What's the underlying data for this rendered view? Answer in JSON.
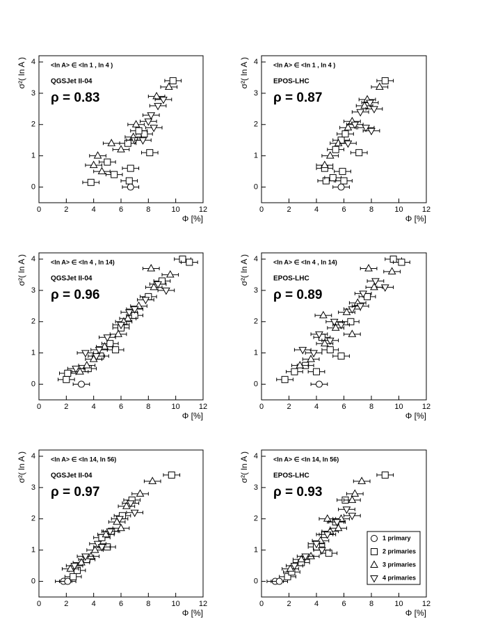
{
  "chart_data": [
    {
      "type": "scatter",
      "range": "<ln A> ∈ <ln 1 , ln 4 )",
      "model": "QGSJet II-04",
      "rho": "ρ = 0.83",
      "xlabel": "Φ [%]",
      "ylabel": "σ²( ln A )",
      "xlim": [
        0,
        12
      ],
      "ylim": [
        -0.5,
        4.2
      ],
      "xticks": [
        0,
        2,
        4,
        6,
        8,
        10,
        12
      ],
      "yticks": [
        0,
        1,
        2,
        3,
        4
      ],
      "series": [
        {
          "marker": "circle",
          "color": "#000000",
          "xerr": 0.6,
          "x": [
            6.7
          ],
          "values": [
            0.0
          ]
        },
        {
          "marker": "square",
          "color": "#000000",
          "xerr": 0.6,
          "x": [
            3.8,
            6.6,
            5.5,
            6.7,
            8.1,
            5.0,
            6.5,
            7.7,
            9.8,
            7.3
          ],
          "values": [
            0.15,
            0.2,
            0.4,
            0.6,
            1.1,
            0.8,
            1.4,
            1.7,
            3.4,
            1.8
          ]
        },
        {
          "marker": "triangle-up",
          "color": "#000000",
          "xerr": 0.6,
          "x": [
            4.6,
            4.3,
            5.3,
            6.0,
            7.1,
            8.6,
            9.5,
            4.0,
            6.9
          ],
          "values": [
            0.5,
            1.0,
            1.4,
            1.2,
            2.0,
            2.9,
            3.2,
            0.7,
            1.6
          ]
        },
        {
          "marker": "triangle-down",
          "color": "#000000",
          "xerr": 0.6,
          "x": [
            7.0,
            8.0,
            8.4,
            8.7,
            9.1,
            7.6,
            8.2
          ],
          "values": [
            1.5,
            2.1,
            1.9,
            2.6,
            2.8,
            1.5,
            2.3
          ]
        }
      ]
    },
    {
      "type": "scatter",
      "range": "<ln A> ∈ <ln 1 , ln 4 )",
      "model": "EPOS-LHC",
      "rho": "ρ = 0.87",
      "xlabel": "Φ [%]",
      "ylabel": "σ²( ln A )",
      "xlim": [
        0,
        12
      ],
      "ylim": [
        -0.5,
        4.2
      ],
      "xticks": [
        0,
        2,
        4,
        6,
        8,
        10,
        12
      ],
      "yticks": [
        0,
        1,
        2,
        3,
        4
      ],
      "series": [
        {
          "marker": "circle",
          "color": "#000000",
          "xerr": 0.6,
          "x": [
            5.8
          ],
          "values": [
            0.0
          ]
        },
        {
          "marker": "square",
          "color": "#000000",
          "xerr": 0.6,
          "x": [
            4.7,
            5.2,
            5.9,
            4.6,
            6.0,
            7.1,
            5.8,
            6.1,
            9.0,
            5.4
          ],
          "values": [
            0.2,
            0.3,
            0.5,
            0.6,
            0.2,
            1.1,
            1.5,
            1.7,
            3.4,
            1.2
          ]
        },
        {
          "marker": "triangle-up",
          "color": "#000000",
          "xerr": 0.6,
          "x": [
            4.6,
            5.0,
            5.6,
            6.3,
            7.5,
            7.7,
            8.6,
            6.6
          ],
          "values": [
            0.7,
            1.0,
            1.4,
            1.9,
            2.6,
            2.8,
            3.2,
            2.1
          ]
        },
        {
          "marker": "triangle-down",
          "color": "#000000",
          "xerr": 0.6,
          "x": [
            6.3,
            6.8,
            7.6,
            7.2,
            8.2,
            7.9,
            8.0
          ],
          "values": [
            1.4,
            2.0,
            1.9,
            2.4,
            2.5,
            2.7,
            1.8
          ]
        }
      ]
    },
    {
      "type": "scatter",
      "range": "<ln A> ∈ <ln 4 , ln 14)",
      "model": "QGSJet II-04",
      "rho": "ρ = 0.96",
      "xlabel": "Φ [%]",
      "ylabel": "σ²( ln A )",
      "xlim": [
        0,
        12
      ],
      "ylim": [
        -0.5,
        4.2
      ],
      "xticks": [
        0,
        2,
        4,
        6,
        8,
        10,
        12
      ],
      "yticks": [
        0,
        1,
        2,
        3,
        4
      ],
      "series": [
        {
          "marker": "circle",
          "color": "#000000",
          "xerr": 0.6,
          "x": [
            3.1
          ],
          "values": [
            0.0
          ]
        },
        {
          "marker": "square",
          "color": "#000000",
          "xerr": 0.6,
          "x": [
            2.0,
            2.1,
            3.6,
            4.5,
            5.2,
            6.0,
            7.0,
            8.0,
            10.5,
            11.0,
            9.0,
            5.6
          ],
          "values": [
            0.15,
            0.35,
            0.5,
            0.9,
            1.3,
            1.8,
            2.2,
            2.8,
            4.0,
            3.9,
            3.3,
            1.1
          ]
        },
        {
          "marker": "triangle-up",
          "color": "#000000",
          "xerr": 0.6,
          "x": [
            3.0,
            4.0,
            4.8,
            5.8,
            6.5,
            7.3,
            8.4,
            9.6,
            8.2,
            3.5,
            6.2
          ],
          "values": [
            0.4,
            0.8,
            1.2,
            1.6,
            2.1,
            2.5,
            3.1,
            3.5,
            3.7,
            0.6,
            2.0
          ]
        },
        {
          "marker": "triangle-down",
          "color": "#000000",
          "xerr": 0.6,
          "x": [
            2.7,
            3.4,
            4.4,
            5.0,
            6.0,
            7.0,
            7.8,
            8.7,
            9.3,
            6.6,
            4.2
          ],
          "values": [
            0.5,
            1.0,
            1.1,
            1.5,
            1.9,
            2.4,
            2.7,
            3.2,
            3.0,
            2.3,
            0.9
          ]
        }
      ]
    },
    {
      "type": "scatter",
      "range": "<ln A> ∈ <ln 4 , ln 14)",
      "model": "EPOS-LHC",
      "rho": "ρ = 0.89",
      "xlabel": "Φ [%]",
      "ylabel": "σ²( ln A )",
      "xlim": [
        0,
        12
      ],
      "ylim": [
        -0.5,
        4.2
      ],
      "xticks": [
        0,
        2,
        4,
        6,
        8,
        10,
        12
      ],
      "yticks": [
        0,
        1,
        2,
        3,
        4
      ],
      "series": [
        {
          "marker": "circle",
          "color": "#000000",
          "xerr": 0.6,
          "x": [
            4.2
          ],
          "values": [
            0.0
          ]
        },
        {
          "marker": "square",
          "color": "#000000",
          "xerr": 0.6,
          "x": [
            1.7,
            2.4,
            3.2,
            4.0,
            5.0,
            4.4,
            6.5,
            7.7,
            9.6,
            10.2,
            5.8
          ],
          "values": [
            0.15,
            0.4,
            0.6,
            0.4,
            1.1,
            1.5,
            2.0,
            2.8,
            4.0,
            3.9,
            0.9
          ]
        },
        {
          "marker": "triangle-up",
          "color": "#000000",
          "xerr": 0.6,
          "x": [
            2.8,
            3.6,
            4.6,
            5.4,
            6.2,
            7.0,
            8.2,
            9.5,
            7.8,
            4.5,
            6.6
          ],
          "values": [
            0.6,
            0.8,
            1.3,
            1.8,
            2.3,
            2.6,
            3.1,
            3.6,
            3.7,
            2.2,
            1.6
          ]
        },
        {
          "marker": "triangle-down",
          "color": "#000000",
          "xerr": 0.6,
          "x": [
            3.0,
            3.8,
            5.0,
            5.8,
            6.6,
            7.4,
            8.3,
            9.0,
            5.3,
            4.2,
            7.2
          ],
          "values": [
            1.1,
            1.0,
            1.4,
            1.9,
            2.4,
            2.9,
            3.3,
            3.1,
            2.0,
            1.6,
            2.5
          ]
        }
      ]
    },
    {
      "type": "scatter",
      "range": "<ln A> ∈ <ln 14, ln 56)",
      "model": "QGSJet II-04",
      "rho": "ρ = 0.97",
      "xlabel": "Φ [%]",
      "ylabel": "σ²( ln A )",
      "xlim": [
        0,
        12
      ],
      "ylim": [
        -0.5,
        4.2
      ],
      "xticks": [
        0,
        2,
        4,
        6,
        8,
        10,
        12
      ],
      "yticks": [
        0,
        1,
        2,
        3,
        4
      ],
      "series": [
        {
          "marker": "circle",
          "color": "#000000",
          "xerr": 0.6,
          "x": [
            1.8,
            2.1
          ],
          "values": [
            0.0,
            0.0
          ]
        },
        {
          "marker": "square",
          "color": "#000000",
          "xerr": 0.6,
          "x": [
            2.5,
            2.8,
            3.5,
            4.6,
            5.3,
            6.1,
            6.8,
            9.7,
            5.0
          ],
          "values": [
            0.15,
            0.35,
            0.7,
            1.4,
            1.6,
            2.1,
            2.6,
            3.4,
            1.1
          ]
        },
        {
          "marker": "triangle-up",
          "color": "#000000",
          "xerr": 0.6,
          "x": [
            2.3,
            3.1,
            4.1,
            4.9,
            5.7,
            6.4,
            7.4,
            8.3,
            3.8,
            6.0
          ],
          "values": [
            0.4,
            0.6,
            1.0,
            1.5,
            1.9,
            2.4,
            2.8,
            3.2,
            0.8,
            1.7
          ]
        },
        {
          "marker": "triangle-down",
          "color": "#000000",
          "xerr": 0.6,
          "x": [
            2.6,
            3.4,
            4.3,
            5.2,
            5.9,
            6.7,
            7.0,
            4.6
          ],
          "values": [
            0.5,
            0.8,
            1.2,
            1.6,
            2.0,
            2.5,
            2.2,
            1.1
          ]
        }
      ]
    },
    {
      "type": "scatter",
      "range": "<ln A> ∈ <ln 14, ln 56)",
      "model": "EPOS-LHC",
      "rho": "ρ = 0.93",
      "xlabel": "Φ [%]",
      "ylabel": "σ²( ln A )",
      "xlim": [
        0,
        12
      ],
      "ylim": [
        -0.5,
        4.2
      ],
      "xticks": [
        0,
        2,
        4,
        6,
        8,
        10,
        12
      ],
      "yticks": [
        0,
        1,
        2,
        3,
        4
      ],
      "legend": "lower right",
      "series": [
        {
          "name": "1 primary",
          "marker": "circle",
          "color": "#000000",
          "xerr": 0.6,
          "x": [
            1.0,
            1.3
          ],
          "values": [
            0.0,
            0.0
          ]
        },
        {
          "name": "2 primaries",
          "marker": "square",
          "color": "#000000",
          "xerr": 0.6,
          "x": [
            1.9,
            2.2,
            2.9,
            4.0,
            4.6,
            5.4,
            6.1,
            9.0,
            4.9
          ],
          "values": [
            0.15,
            0.3,
            0.6,
            1.1,
            1.5,
            1.9,
            2.6,
            3.4,
            0.9
          ]
        },
        {
          "name": "3 primaries",
          "marker": "triangle-up",
          "color": "#000000",
          "xerr": 0.6,
          "x": [
            2.1,
            2.9,
            3.6,
            4.3,
            5.0,
            5.8,
            6.6,
            7.3,
            6.8,
            4.8,
            5.6
          ],
          "values": [
            0.4,
            0.7,
            0.8,
            1.3,
            1.6,
            2.0,
            2.6,
            3.2,
            2.8,
            2.0,
            1.7
          ]
        },
        {
          "name": "4 primaries",
          "marker": "triangle-down",
          "color": "#000000",
          "xerr": 0.6,
          "x": [
            2.4,
            3.2,
            4.0,
            4.8,
            5.5,
            6.2,
            6.6,
            4.4
          ],
          "values": [
            0.5,
            0.8,
            1.2,
            1.5,
            1.9,
            2.3,
            2.1,
            1.0
          ]
        }
      ]
    }
  ]
}
